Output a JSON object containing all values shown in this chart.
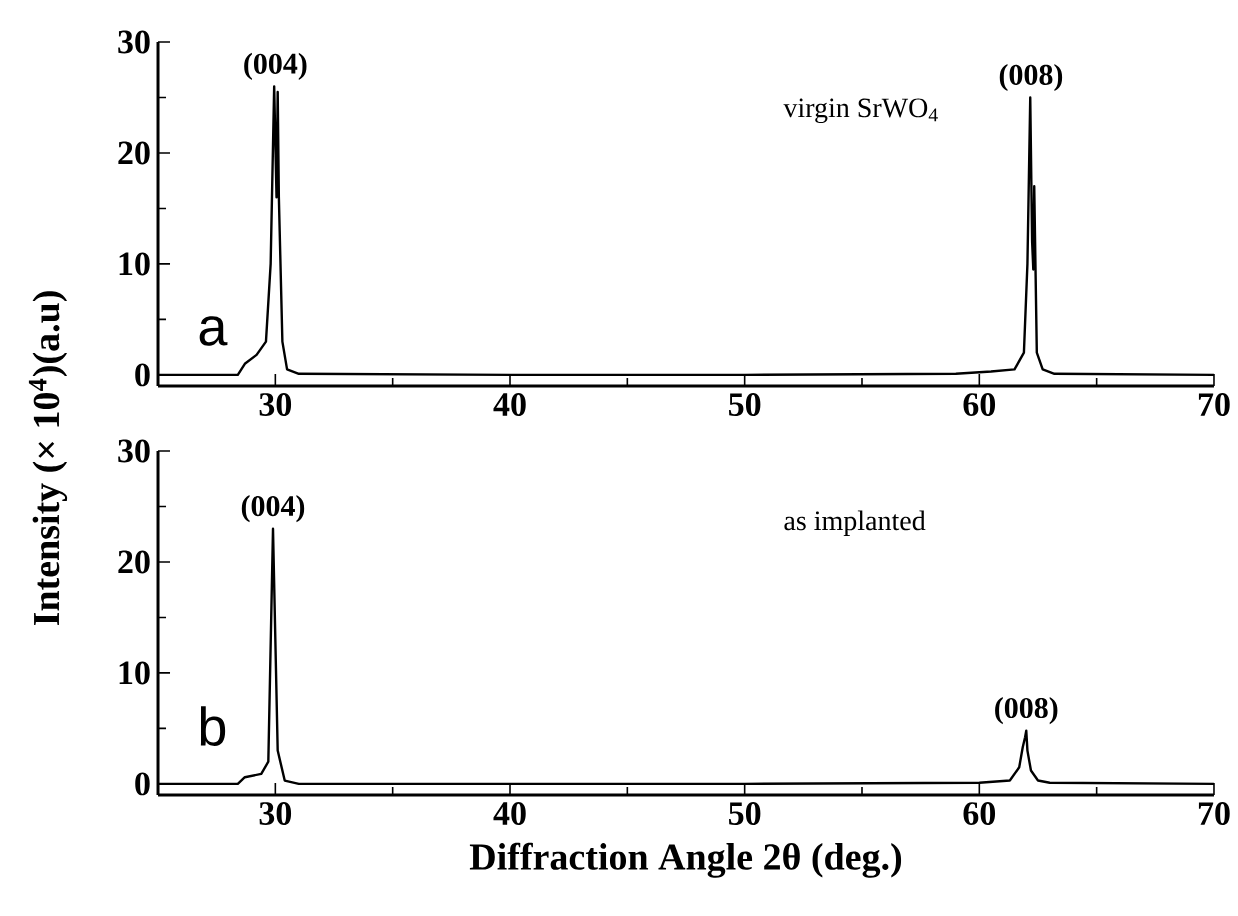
{
  "chart_data": [
    {
      "type": "line",
      "ylabel": "Intensity (× 10$^{4}$)(a.u)",
      "x": [
        25,
        28.4,
        28.7,
        29.2,
        29.6,
        29.8,
        29.95,
        30.05,
        30.1,
        30.15,
        30.3,
        30.5,
        31,
        40,
        50,
        59,
        60.5,
        61.5,
        61.9,
        62.05,
        62.17,
        62.25,
        62.3,
        62.34,
        62.45,
        62.7,
        63.2,
        70
      ],
      "series": [
        {
          "color": "#000000",
          "values": [
            0,
            0,
            1,
            1.8,
            3,
            10,
            26,
            16,
            25.5,
            16,
            3,
            0.5,
            0.1,
            0,
            0,
            0.1,
            0.3,
            0.5,
            2,
            10,
            25,
            12,
            9.5,
            17,
            2,
            0.5,
            0.1,
            0
          ]
        }
      ],
      "xlim": [
        25,
        70
      ],
      "ylim": [
        -1,
        30
      ],
      "xticks": [
        30,
        40,
        50,
        60,
        70
      ],
      "yticks": [
        0,
        10,
        20,
        30
      ],
      "marker": "none",
      "line_style": "solid",
      "annotations": [
        {
          "text": "(004)",
          "x": 30,
          "y": 26
        },
        {
          "text": "(008)",
          "x": 62.2,
          "y": 25
        },
        "a",
        "virgin SrWO$_{4}$"
      ]
    },
    {
      "type": "line",
      "xlabel": "Diffraction Angle 2θ (deg.)",
      "x": [
        25,
        28.4,
        28.7,
        29.4,
        29.7,
        29.9,
        30.1,
        30.4,
        31,
        40,
        50,
        60,
        61.3,
        61.7,
        61.85,
        61.95,
        62.0,
        62.05,
        62.2,
        62.5,
        63,
        70
      ],
      "series": [
        {
          "color": "#000000",
          "values": [
            0,
            0,
            0.6,
            0.9,
            2,
            23,
            3,
            0.3,
            0,
            0,
            0,
            0.1,
            0.3,
            1.5,
            3.3,
            4.2,
            4.8,
            3,
            1.2,
            0.3,
            0.1,
            0
          ]
        }
      ],
      "xlim": [
        25,
        70
      ],
      "ylim": [
        -1,
        30
      ],
      "xticks": [
        30,
        40,
        50,
        60,
        70
      ],
      "yticks": [
        0,
        10,
        20,
        30
      ],
      "marker": "none",
      "line_style": "solid",
      "annotations": [
        {
          "text": "(004)",
          "x": 29.9,
          "y": 23
        },
        {
          "text": "(008)",
          "x": 62.0,
          "y": 4.8
        },
        "b",
        "as implanted"
      ]
    }
  ]
}
